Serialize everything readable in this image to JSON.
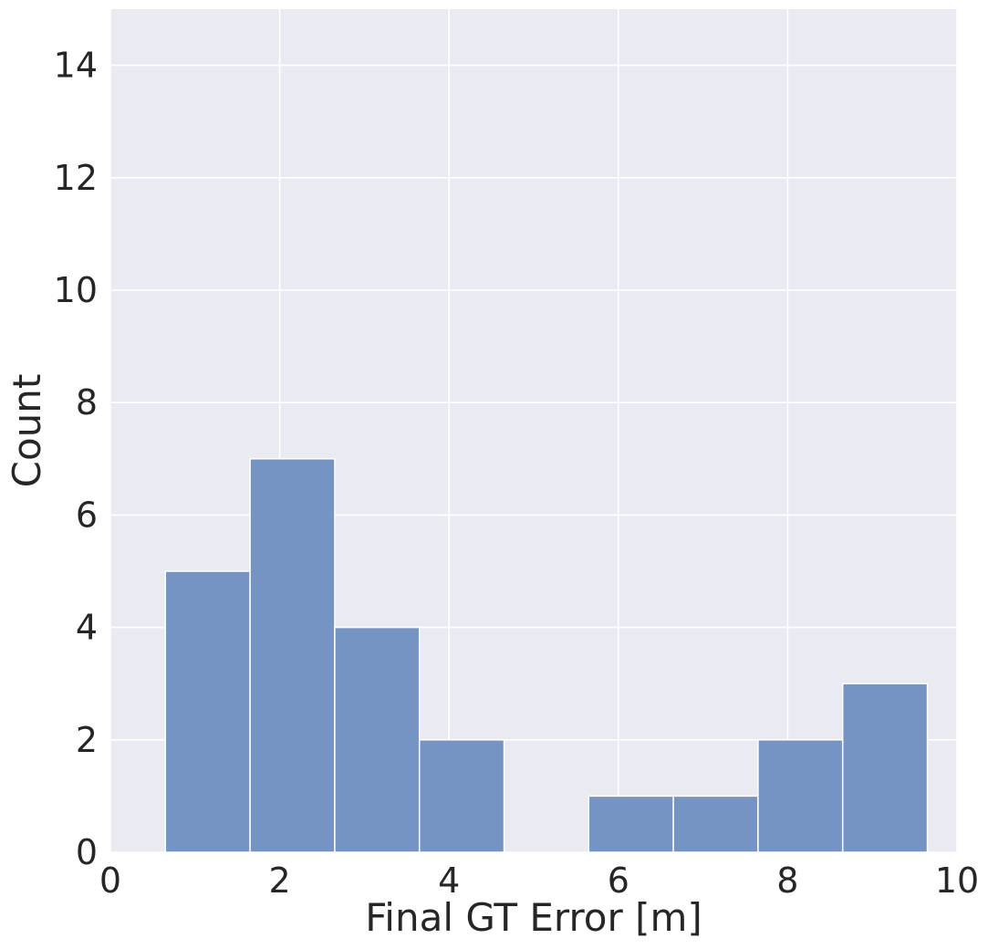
{
  "chart_data": {
    "type": "bar",
    "subtype": "histogram",
    "title": "",
    "xlabel": "Final GT Error [m]",
    "ylabel": "Count",
    "xlim": [
      0,
      10
    ],
    "ylim": [
      0,
      15
    ],
    "xticks": [
      0,
      2,
      4,
      6,
      8,
      10
    ],
    "yticks": [
      0,
      2,
      4,
      6,
      8,
      10,
      12,
      14
    ],
    "bins": [
      {
        "x0": 0.65,
        "x1": 1.65,
        "count": 5
      },
      {
        "x0": 1.65,
        "x1": 2.65,
        "count": 7
      },
      {
        "x0": 2.65,
        "x1": 3.65,
        "count": 4
      },
      {
        "x0": 3.65,
        "x1": 4.65,
        "count": 2
      },
      {
        "x0": 4.65,
        "x1": 5.65,
        "count": 0
      },
      {
        "x0": 5.65,
        "x1": 6.65,
        "count": 1
      },
      {
        "x0": 6.65,
        "x1": 7.65,
        "count": 1
      },
      {
        "x0": 7.65,
        "x1": 8.65,
        "count": 2
      },
      {
        "x0": 8.65,
        "x1": 9.65,
        "count": 3
      }
    ],
    "grid": true,
    "legend": "none",
    "colors": {
      "background": "#eaeaf2",
      "bar": "#7593c3",
      "grid": "#ffffff",
      "text": "#262626"
    }
  }
}
